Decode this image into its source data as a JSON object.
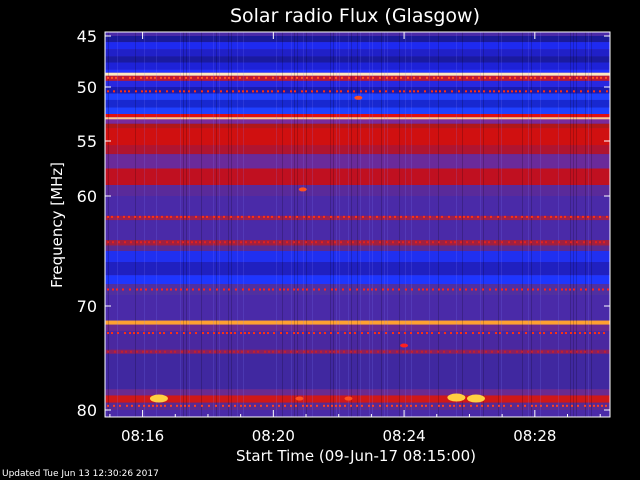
{
  "chart_data": {
    "type": "heatmap",
    "title": "Solar radio Flux (Glasgow)",
    "ylabel": "Frequency [MHz]",
    "xlabel": "Start Time (09-Jun-17 08:15:00)",
    "x_ticks": [
      "08:16",
      "08:20",
      "08:24",
      "08:28"
    ],
    "x_tick_minutes": [
      16,
      20,
      24,
      28
    ],
    "x_range_minutes": [
      14.85,
      30.3
    ],
    "y_ticks": [
      45,
      50,
      55,
      60,
      70,
      80
    ],
    "y_range_mhz": [
      45,
      80
    ],
    "grid": false,
    "bands": [
      {
        "f0": 45.0,
        "f1": 45.6,
        "color": "#1a1a9a"
      },
      {
        "f0": 45.6,
        "f1": 46.3,
        "color": "#1e2af0"
      },
      {
        "f0": 46.3,
        "f1": 47.0,
        "color": "#2020c8"
      },
      {
        "f0": 47.0,
        "f1": 47.6,
        "color": "#1a1aa0"
      },
      {
        "f0": 47.6,
        "f1": 48.3,
        "color": "#1e22d8"
      },
      {
        "f0": 48.3,
        "f1": 48.6,
        "color": "#2030ff"
      },
      {
        "f0": 48.6,
        "f1": 48.9,
        "color": "#ffe8c0"
      },
      {
        "f0": 48.9,
        "f1": 49.4,
        "color": "#c01830"
      },
      {
        "f0": 49.4,
        "f1": 50.0,
        "color": "#2828e0"
      },
      {
        "f0": 50.0,
        "f1": 50.6,
        "color": "#1a1ab0"
      },
      {
        "f0": 50.6,
        "f1": 51.2,
        "color": "#1e40ff"
      },
      {
        "f0": 51.2,
        "f1": 51.9,
        "color": "#1828d0"
      },
      {
        "f0": 51.9,
        "f1": 52.5,
        "color": "#2040ff"
      },
      {
        "f0": 52.5,
        "f1": 52.8,
        "color": "#e01010"
      },
      {
        "f0": 52.8,
        "f1": 53.0,
        "color": "#ffc890"
      },
      {
        "f0": 53.0,
        "f1": 53.4,
        "color": "#7a2a9a"
      },
      {
        "f0": 53.4,
        "f1": 53.8,
        "color": "#b01818"
      },
      {
        "f0": 53.8,
        "f1": 55.4,
        "color": "#d01010"
      },
      {
        "f0": 55.4,
        "f1": 56.2,
        "color": "#b01430"
      },
      {
        "f0": 56.2,
        "f1": 57.5,
        "color": "#6a2a9a"
      },
      {
        "f0": 57.5,
        "f1": 59.0,
        "color": "#c01020"
      },
      {
        "f0": 59.0,
        "f1": 60.0,
        "color": "#5a2a9a"
      },
      {
        "f0": 60.0,
        "f1": 61.8,
        "color": "#4a2aa8"
      },
      {
        "f0": 61.8,
        "f1": 62.2,
        "color": "#9a2050"
      },
      {
        "f0": 62.2,
        "f1": 64.0,
        "color": "#4a2aa8"
      },
      {
        "f0": 64.0,
        "f1": 64.5,
        "color": "#a02040"
      },
      {
        "f0": 64.5,
        "f1": 65.0,
        "color": "#5a2a90"
      },
      {
        "f0": 65.0,
        "f1": 66.0,
        "color": "#2030f0"
      },
      {
        "f0": 66.0,
        "f1": 67.2,
        "color": "#2020c0"
      },
      {
        "f0": 67.2,
        "f1": 68.0,
        "color": "#1e36ff"
      },
      {
        "f0": 68.0,
        "f1": 69.0,
        "color": "#5030a0"
      },
      {
        "f0": 69.0,
        "f1": 71.4,
        "color": "#4a2aa8"
      },
      {
        "f0": 71.4,
        "f1": 71.8,
        "color": "#ffa030"
      },
      {
        "f0": 71.8,
        "f1": 72.4,
        "color": "#6a2a90"
      },
      {
        "f0": 72.4,
        "f1": 74.2,
        "color": "#4a28a0"
      },
      {
        "f0": 74.2,
        "f1": 74.6,
        "color": "#8a2060"
      },
      {
        "f0": 74.6,
        "f1": 78.0,
        "color": "#4028a0"
      },
      {
        "f0": 78.0,
        "f1": 78.6,
        "color": "#6a2a90"
      },
      {
        "f0": 78.6,
        "f1": 79.3,
        "color": "#d01818"
      },
      {
        "f0": 79.3,
        "f1": 80.0,
        "color": "#5a2a90"
      }
    ],
    "dotted_lines": [
      {
        "freq": 49.1,
        "color": "#ff5020"
      },
      {
        "freq": 50.4,
        "color": "#ff3010"
      },
      {
        "freq": 61.9,
        "color": "#ff3010"
      },
      {
        "freq": 64.2,
        "color": "#e02020"
      },
      {
        "freq": 68.5,
        "color": "#ff2020"
      },
      {
        "freq": 72.6,
        "color": "#ff3010"
      },
      {
        "freq": 74.4,
        "color": "#c02030"
      },
      {
        "freq": 79.6,
        "color": "#ff4020"
      }
    ],
    "bursts": [
      {
        "t": 16.5,
        "f": 78.9,
        "intensity": "high"
      },
      {
        "t": 20.8,
        "f": 78.9,
        "intensity": "medium"
      },
      {
        "t": 22.3,
        "f": 78.9,
        "intensity": "medium"
      },
      {
        "t": 25.6,
        "f": 78.8,
        "intensity": "high"
      },
      {
        "t": 26.2,
        "f": 78.9,
        "intensity": "high"
      },
      {
        "t": 20.9,
        "f": 59.4,
        "intensity": "medium"
      },
      {
        "t": 22.6,
        "f": 51.0,
        "intensity": "medium"
      },
      {
        "t": 24.0,
        "f": 73.8,
        "intensity": "low"
      }
    ],
    "colors": {
      "frame": "#ffffff",
      "background": "#000000",
      "text": "#ffffff"
    }
  },
  "footer": {
    "updated": "Updated Tue Jun 13 12:30:26 2017"
  }
}
